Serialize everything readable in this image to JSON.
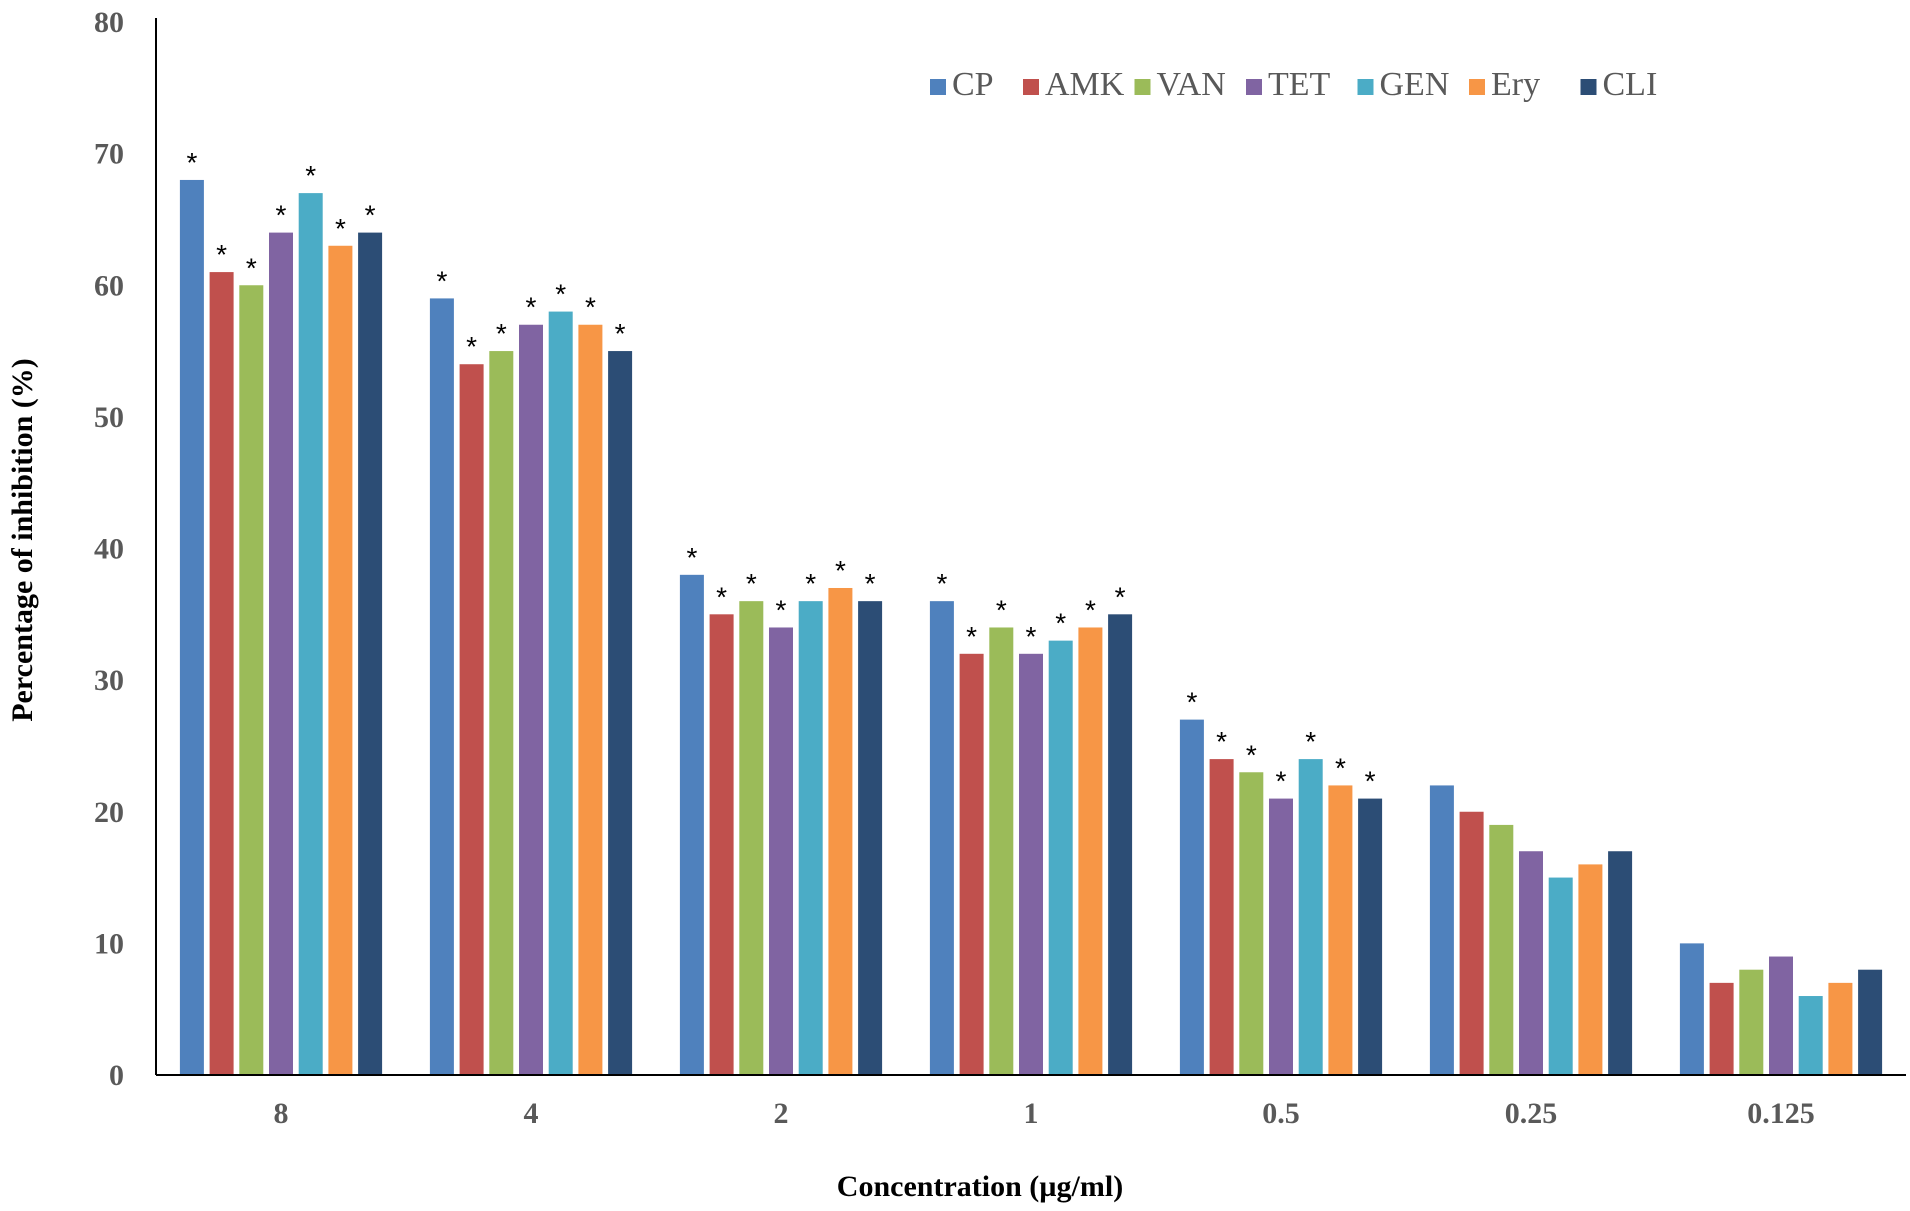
{
  "chart_data": {
    "type": "bar",
    "title": "",
    "xlabel": "Concentration (µg/ml)",
    "ylabel": "Percentage of inhibition (%)",
    "ylim": [
      0,
      80
    ],
    "yticks": [
      "0",
      "10",
      "20",
      "30",
      "40",
      "50",
      "60",
      "70",
      "80"
    ],
    "categories": [
      "8",
      "4",
      "2",
      "1",
      "0.5",
      "0.25",
      "0.125"
    ],
    "legend_position": "top-right",
    "significance_marker": "*",
    "series": [
      {
        "name": "CP",
        "color": "#4F81BD",
        "values": [
          68,
          59,
          38,
          36,
          27,
          22,
          10
        ],
        "significant": [
          true,
          true,
          true,
          true,
          true,
          false,
          false
        ]
      },
      {
        "name": "AMK",
        "color": "#C0504D",
        "values": [
          61,
          54,
          35,
          32,
          24,
          20,
          7
        ],
        "significant": [
          true,
          true,
          true,
          true,
          true,
          false,
          false
        ]
      },
      {
        "name": "VAN",
        "color": "#9BBB59",
        "values": [
          60,
          55,
          36,
          34,
          23,
          19,
          8
        ],
        "significant": [
          true,
          true,
          true,
          true,
          true,
          false,
          false
        ]
      },
      {
        "name": "TET",
        "color": "#8064A2",
        "values": [
          64,
          57,
          34,
          32,
          21,
          17,
          9
        ],
        "significant": [
          true,
          true,
          true,
          true,
          true,
          false,
          false
        ]
      },
      {
        "name": "GEN",
        "color": "#4BACC6",
        "values": [
          67,
          58,
          36,
          33,
          24,
          15,
          6
        ],
        "significant": [
          true,
          true,
          true,
          true,
          true,
          false,
          false
        ]
      },
      {
        "name": "Ery",
        "color": "#F79646",
        "values": [
          63,
          57,
          37,
          34,
          22,
          16,
          7
        ],
        "significant": [
          true,
          true,
          true,
          true,
          true,
          false,
          false
        ]
      },
      {
        "name": "CLI",
        "color": "#2C4D75",
        "values": [
          64,
          55,
          36,
          35,
          21,
          17,
          8
        ],
        "significant": [
          true,
          true,
          true,
          true,
          true,
          false,
          false
        ]
      }
    ]
  }
}
